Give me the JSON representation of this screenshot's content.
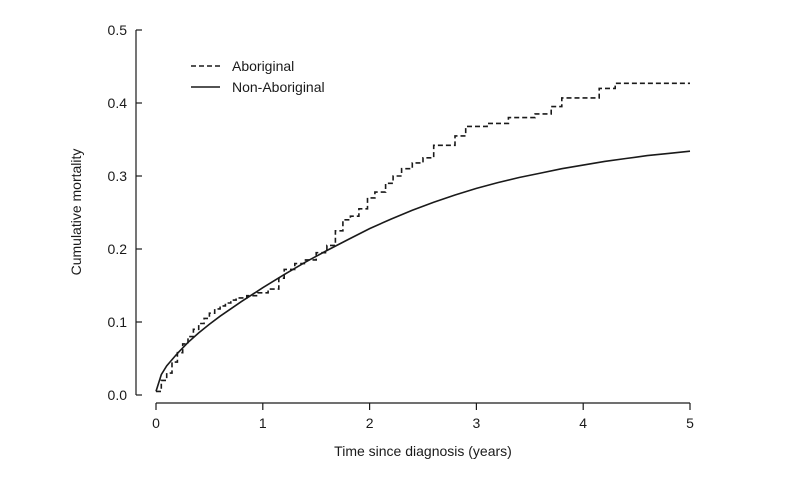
{
  "chart_data": {
    "type": "line",
    "title": "",
    "xlabel": "Time since diagnosis (years)",
    "ylabel": "Cumulative mortality",
    "xlim": [
      0,
      5
    ],
    "ylim": [
      0,
      0.5
    ],
    "x_ticks": [
      0,
      1,
      2,
      3,
      4,
      5
    ],
    "x_tick_labels": [
      "0",
      "1",
      "2",
      "3",
      "4",
      "5"
    ],
    "y_ticks": [
      0.0,
      0.1,
      0.2,
      0.3,
      0.4,
      0.5
    ],
    "y_tick_labels": [
      "0.0",
      "0.1",
      "0.2",
      "0.3",
      "0.4",
      "0.5"
    ],
    "grid": false,
    "legend_position": "top-left",
    "series": [
      {
        "name": "Aboriginal",
        "line_style": "dashed",
        "step": true,
        "color": "#1a1a1a",
        "x": [
          0,
          0.05,
          0.1,
          0.15,
          0.2,
          0.25,
          0.3,
          0.35,
          0.4,
          0.45,
          0.5,
          0.55,
          0.6,
          0.65,
          0.7,
          0.75,
          0.85,
          0.95,
          1.05,
          1.15,
          1.2,
          1.3,
          1.4,
          1.5,
          1.6,
          1.68,
          1.75,
          1.82,
          1.9,
          1.98,
          2.05,
          2.15,
          2.22,
          2.3,
          2.4,
          2.5,
          2.6,
          2.8,
          2.9,
          3.1,
          3.3,
          3.55,
          3.7,
          3.8,
          4.15,
          4.3,
          5.0
        ],
        "y": [
          0.005,
          0.02,
          0.03,
          0.045,
          0.058,
          0.07,
          0.08,
          0.09,
          0.098,
          0.105,
          0.112,
          0.118,
          0.122,
          0.126,
          0.13,
          0.133,
          0.136,
          0.14,
          0.145,
          0.16,
          0.172,
          0.18,
          0.185,
          0.195,
          0.205,
          0.225,
          0.24,
          0.245,
          0.255,
          0.27,
          0.278,
          0.29,
          0.3,
          0.31,
          0.318,
          0.325,
          0.342,
          0.355,
          0.368,
          0.372,
          0.38,
          0.385,
          0.395,
          0.407,
          0.42,
          0.427,
          0.427
        ]
      },
      {
        "name": "Non-Aboriginal",
        "line_style": "solid",
        "step": false,
        "color": "#1a1a1a",
        "x": [
          0,
          0.05,
          0.1,
          0.2,
          0.3,
          0.4,
          0.5,
          0.6,
          0.8,
          1.0,
          1.2,
          1.4,
          1.6,
          1.8,
          2.0,
          2.2,
          2.4,
          2.6,
          2.8,
          3.0,
          3.2,
          3.4,
          3.6,
          3.8,
          4.0,
          4.2,
          4.4,
          4.6,
          4.8,
          5.0
        ],
        "y": [
          0.005,
          0.028,
          0.04,
          0.057,
          0.072,
          0.085,
          0.097,
          0.108,
          0.128,
          0.147,
          0.165,
          0.182,
          0.198,
          0.213,
          0.228,
          0.241,
          0.253,
          0.264,
          0.274,
          0.283,
          0.291,
          0.298,
          0.304,
          0.31,
          0.315,
          0.32,
          0.324,
          0.328,
          0.331,
          0.334
        ]
      }
    ]
  }
}
